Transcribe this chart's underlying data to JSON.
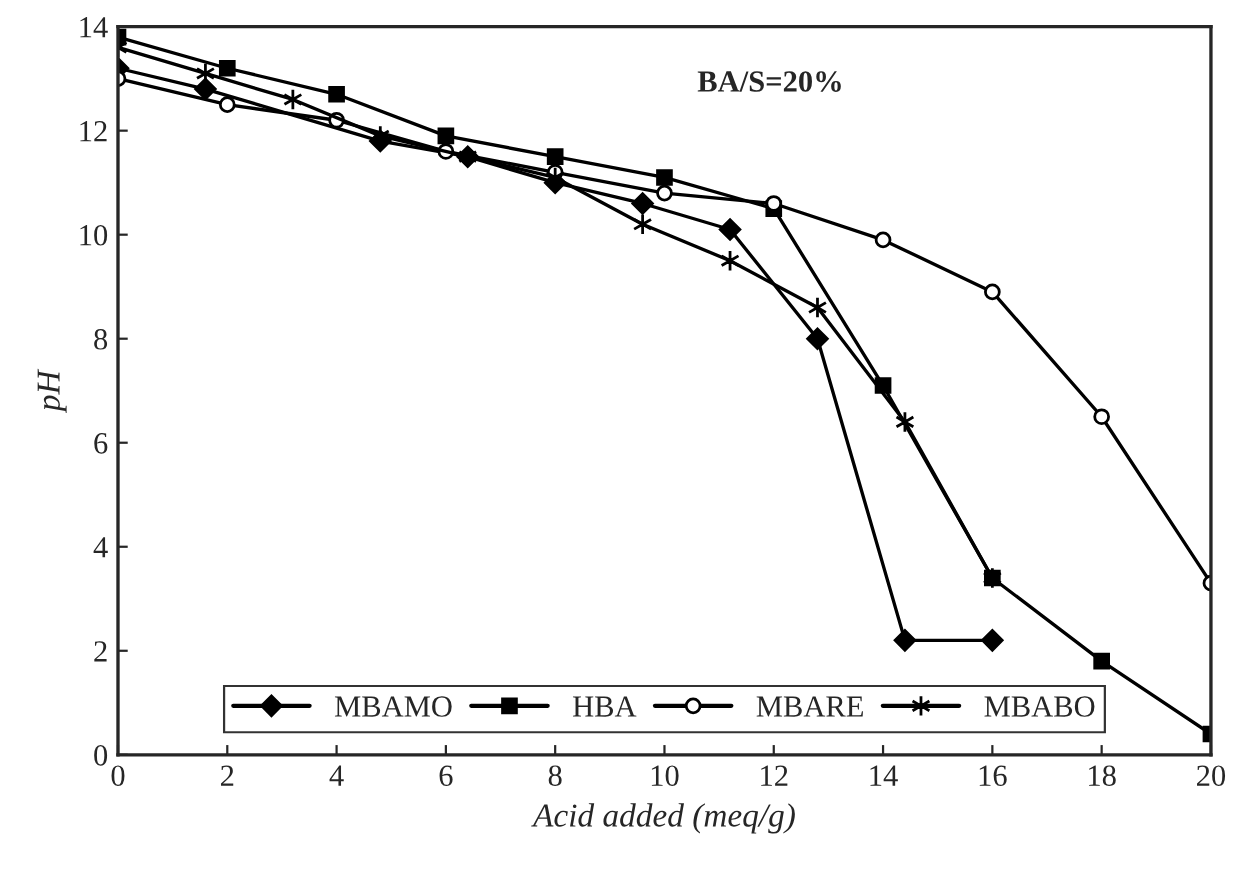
{
  "chart_data": {
    "type": "line",
    "xlabel": "Acid added (meq/g)",
    "ylabel": "pH",
    "annotations": [
      "BA/S=20%"
    ],
    "xlim": [
      0,
      20
    ],
    "xticks": [
      0,
      2,
      4,
      6,
      8,
      10,
      12,
      14,
      16,
      18,
      20
    ],
    "ylim": [
      0,
      14
    ],
    "yticks": [
      0,
      2,
      4,
      6,
      8,
      10,
      12,
      14
    ],
    "grid": false,
    "legend": "bottom",
    "line_style": "solid",
    "series": [
      {
        "name": "MBAMO",
        "color": "#000000",
        "marker": "diamond",
        "x": [
          0,
          1.6,
          4.8,
          6.4,
          8,
          9.6,
          11.2,
          12.8,
          14.4,
          16
        ],
        "values": [
          13.2,
          12.8,
          11.8,
          11.5,
          11.0,
          10.6,
          10.1,
          8.0,
          2.2,
          2.2
        ]
      },
      {
        "name": "HBA",
        "color": "#000000",
        "marker": "square",
        "x": [
          0,
          2,
          4,
          6,
          8,
          10,
          12,
          14,
          16,
          18,
          20
        ],
        "values": [
          13.8,
          13.2,
          12.7,
          11.9,
          11.5,
          11.1,
          10.5,
          7.1,
          3.4,
          1.8,
          0.4
        ]
      },
      {
        "name": "MBARE",
        "color": "#000000",
        "marker": "circle",
        "x": [
          0,
          2,
          4,
          6,
          8,
          10,
          12,
          14,
          16,
          18,
          20
        ],
        "values": [
          13.0,
          12.5,
          12.2,
          11.6,
          11.2,
          10.8,
          10.6,
          9.9,
          8.9,
          6.5,
          3.3
        ]
      },
      {
        "name": "MBABO",
        "color": "#000000",
        "marker": "cross",
        "x": [
          0,
          1.6,
          3.2,
          4.8,
          6.4,
          8,
          9.6,
          11.2,
          12.8,
          14.4,
          16
        ],
        "values": [
          13.6,
          13.1,
          12.6,
          11.9,
          11.5,
          11.1,
          10.2,
          9.5,
          8.6,
          6.4,
          3.4
        ]
      }
    ]
  }
}
